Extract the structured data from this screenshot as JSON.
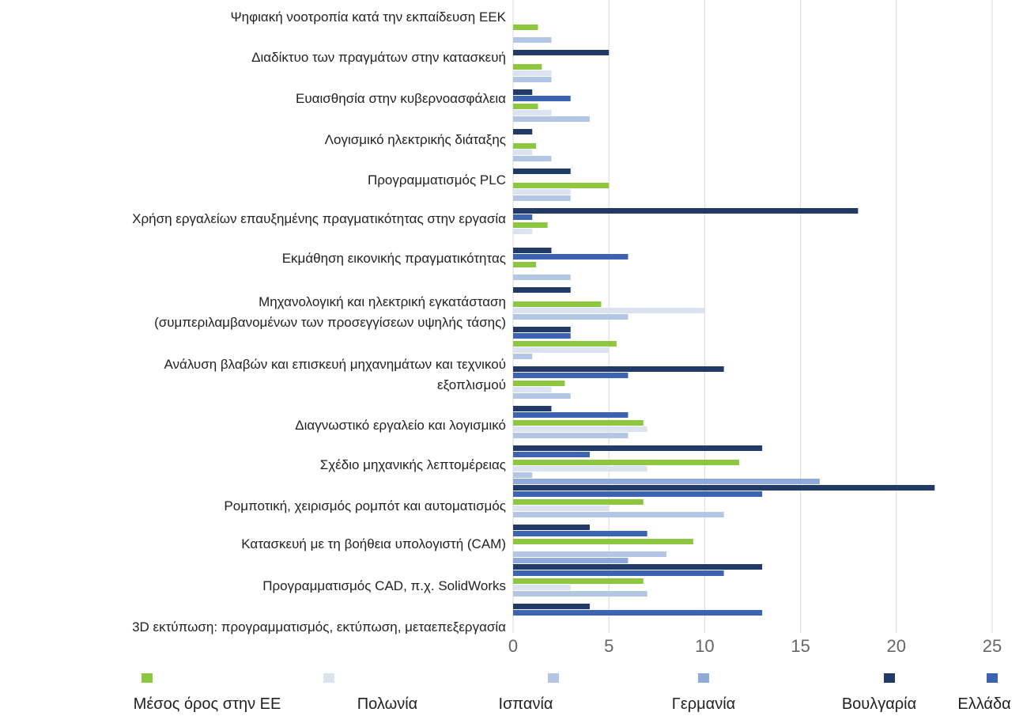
{
  "chart_data": {
    "type": "bar",
    "orientation": "horizontal",
    "categories": [
      "Ψηφιακή νοοτροπία κατά την εκπαίδευση ΕΕΚ",
      "Διαδίκτυο των πραγμάτων στην κατασκευή",
      "Ευαισθησία στην κυβερνοασφάλεια",
      "Λογισμικό ηλεκτρικής διάταξης",
      "Προγραμματισμός PLC",
      "Χρήση εργαλείων επαυξημένης πραγματικότητας στην εργασία",
      "Εκμάθηση εικονικής πραγματικότητας",
      "Μηχανολογική και ηλεκτρική εγκατάσταση\n(συμπεριλαμβανομένων των προσεγγίσεων υψηλής τάσης)",
      "Ανάλυση βλαβών και επισκευή μηχανημάτων και τεχνικού\nεξοπλισμού",
      "Διαγνωστικό εργαλείο και λογισμικό",
      "Σχέδιο μηχανικής λεπτομέρειας",
      "Ρομποτική, χειρισμός ρομπότ και αυτοματισμός",
      "Κατασκευή με τη βοήθεια υπολογιστή (CAM)",
      "Προγραμματισμός CAD, π.χ. SolidWorks",
      "3D εκτύπωση: προγραμματισμός, εκτύπωση, μεταεπεξεργασία"
    ],
    "series": [
      {
        "name": "Μέσος όρος στην ΕΕ",
        "color": "#8dc63f",
        "values": [
          1.3,
          1.5,
          1.3,
          1.2,
          5,
          1.8,
          1.2,
          4.6,
          5.4,
          2.7,
          6.8,
          11.8,
          6.8,
          9.4,
          6.8
        ]
      },
      {
        "name": "Πολωνία",
        "color": "#dce3f0",
        "values": [
          0,
          2,
          2,
          1,
          3,
          1,
          0,
          10,
          5,
          2,
          7,
          7,
          5,
          0,
          3
        ]
      },
      {
        "name": "Ισπανία",
        "color": "#b4c6e6",
        "values": [
          2,
          2,
          4,
          2,
          3,
          0,
          3,
          6,
          1,
          3,
          6,
          1,
          11,
          8,
          7
        ]
      },
      {
        "name": "Γερμανία",
        "color": "#8eaad9",
        "values": [
          0,
          0,
          0,
          0,
          0,
          0,
          0,
          0,
          0,
          0,
          0,
          16,
          0,
          6,
          0
        ]
      },
      {
        "name": "Βουλγαρία",
        "color": "#223a66",
        "values": [
          5,
          1,
          1,
          3,
          18,
          2,
          3,
          3,
          11,
          2,
          13,
          22,
          4,
          13,
          4
        ]
      },
      {
        "name": "Ελλάδα",
        "color": "#3d64b3",
        "values": [
          0,
          3,
          0,
          0,
          1,
          6,
          0,
          3,
          6,
          6,
          4,
          13,
          7,
          11,
          13
        ]
      }
    ],
    "xlim": [
      0,
      25
    ],
    "xticks": [
      0,
      5,
      10,
      15,
      20,
      25
    ],
    "grid": true,
    "legend": "bottom"
  }
}
